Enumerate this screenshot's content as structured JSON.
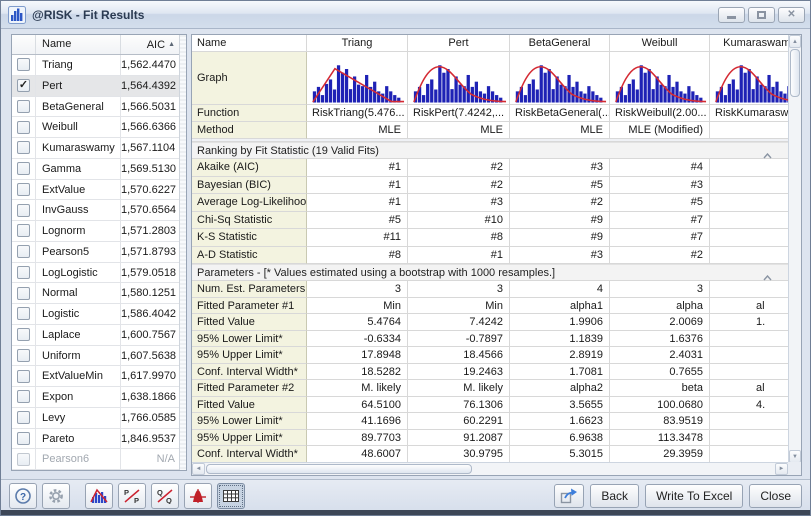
{
  "window": {
    "title": "@RISK - Fit Results"
  },
  "left_panel": {
    "header": {
      "name": "Name",
      "aic": "AIC",
      "sort": "▲"
    },
    "rows": [
      {
        "name": "Triang",
        "aic": "1,562.4470",
        "checked": false
      },
      {
        "name": "Pert",
        "aic": "1,564.4392",
        "checked": true,
        "selected": true
      },
      {
        "name": "BetaGeneral",
        "aic": "1,566.5031",
        "checked": false
      },
      {
        "name": "Weibull",
        "aic": "1,566.6366",
        "checked": false
      },
      {
        "name": "Kumaraswamy",
        "aic": "1,567.1104",
        "checked": false
      },
      {
        "name": "Gamma",
        "aic": "1,569.5130",
        "checked": false
      },
      {
        "name": "ExtValue",
        "aic": "1,570.6227",
        "checked": false
      },
      {
        "name": "InvGauss",
        "aic": "1,570.6564",
        "checked": false
      },
      {
        "name": "Lognorm",
        "aic": "1,571.2803",
        "checked": false
      },
      {
        "name": "Pearson5",
        "aic": "1,571.8793",
        "checked": false
      },
      {
        "name": "LogLogistic",
        "aic": "1,579.0518",
        "checked": false
      },
      {
        "name": "Normal",
        "aic": "1,580.1251",
        "checked": false
      },
      {
        "name": "Logistic",
        "aic": "1,586.4042",
        "checked": false
      },
      {
        "name": "Laplace",
        "aic": "1,600.7567",
        "checked": false
      },
      {
        "name": "Uniform",
        "aic": "1,607.5638",
        "checked": false
      },
      {
        "name": "ExtValueMin",
        "aic": "1,617.9970",
        "checked": false
      },
      {
        "name": "Expon",
        "aic": "1,638.1866",
        "checked": false
      },
      {
        "name": "Levy",
        "aic": "1,766.0585",
        "checked": false
      },
      {
        "name": "Pareto",
        "aic": "1,846.9537",
        "checked": false
      },
      {
        "name": "Pearson6",
        "aic": "N/A",
        "checked": false,
        "disabled": true
      }
    ]
  },
  "comparison": {
    "name_header": "Name",
    "graph_label": "Graph",
    "function_label": "Function",
    "method_label": "Method",
    "ranking": {
      "title": "Ranking by Fit Statistic (19 Valid Fits)",
      "rows": [
        "Akaike (AIC)",
        "Bayesian (BIC)",
        "Average Log-Likelihood",
        "Chi-Sq Statistic",
        "K-S Statistic",
        "A-D Statistic"
      ]
    },
    "parameters": {
      "title": "Parameters - [* Values estimated using a bootstrap with 1000 resamples.]",
      "rows": [
        "Num. Est. Parameters",
        "Fitted Parameter #1",
        "Fitted Value",
        "95% Lower Limit*",
        "95% Upper Limit*",
        "Conf. Interval Width*",
        "Fitted Parameter #2",
        "Fitted Value",
        "95% Lower Limit*",
        "95% Upper Limit*",
        "Conf. Interval Width*"
      ]
    },
    "histogram_bars": [
      0.3,
      0.42,
      0.2,
      0.5,
      0.62,
      0.35,
      1.0,
      0.8,
      0.9,
      0.36,
      0.7,
      0.48,
      0.44,
      0.74,
      0.42,
      0.56,
      0.3,
      0.24,
      0.44,
      0.3,
      0.2,
      0.13
    ],
    "columns": [
      {
        "name": "Triang",
        "function": "RiskTriang(5.476...",
        "method": "MLE",
        "curve": "triangle",
        "ranks": [
          "#1",
          "#1",
          "#1",
          "#5",
          "#11",
          "#8"
        ],
        "params": [
          "3",
          "Min",
          "5.4764",
          "-0.6334",
          "17.8948",
          "18.5282",
          "M. likely",
          "64.5100",
          "41.1696",
          "89.7703",
          "48.6007"
        ]
      },
      {
        "name": "Pert",
        "function": "RiskPert(7.4242,...",
        "method": "MLE",
        "curve": "bell",
        "ranks": [
          "#2",
          "#2",
          "#3",
          "#10",
          "#8",
          "#1"
        ],
        "params": [
          "3",
          "Min",
          "7.4242",
          "-0.7897",
          "18.4566",
          "19.2463",
          "M. likely",
          "76.1306",
          "60.2291",
          "91.2087",
          "30.9795"
        ]
      },
      {
        "name": "BetaGeneral",
        "function": "RiskBetaGeneral(...",
        "method": "MLE",
        "curve": "bell",
        "ranks": [
          "#3",
          "#5",
          "#2",
          "#9",
          "#9",
          "#3"
        ],
        "params": [
          "4",
          "alpha1",
          "1.9906",
          "1.1839",
          "2.8919",
          "1.7081",
          "alpha2",
          "3.5655",
          "1.6623",
          "6.9638",
          "5.3015"
        ]
      },
      {
        "name": "Weibull",
        "function": "RiskWeibull(2.00...",
        "method": "MLE (Modified)",
        "curve": "bell",
        "ranks": [
          "#4",
          "#3",
          "#5",
          "#7",
          "#7",
          "#2"
        ],
        "params": [
          "3",
          "alpha",
          "2.0069",
          "1.6376",
          "2.4031",
          "0.7655",
          "beta",
          "100.0680",
          "83.9519",
          "113.3478",
          "29.3959"
        ]
      },
      {
        "name": "Kumaraswamy",
        "function": "RiskKumarasw",
        "method": "",
        "curve": "bell",
        "cut": true,
        "ranks": [
          "",
          "",
          "",
          "",
          "",
          ""
        ],
        "params": [
          "",
          "al",
          "1.",
          "",
          "",
          "",
          "al",
          "4.",
          "",
          "",
          ""
        ]
      }
    ]
  },
  "footer": {
    "back": "Back",
    "write_to_excel": "Write To Excel",
    "close": "Close"
  }
}
